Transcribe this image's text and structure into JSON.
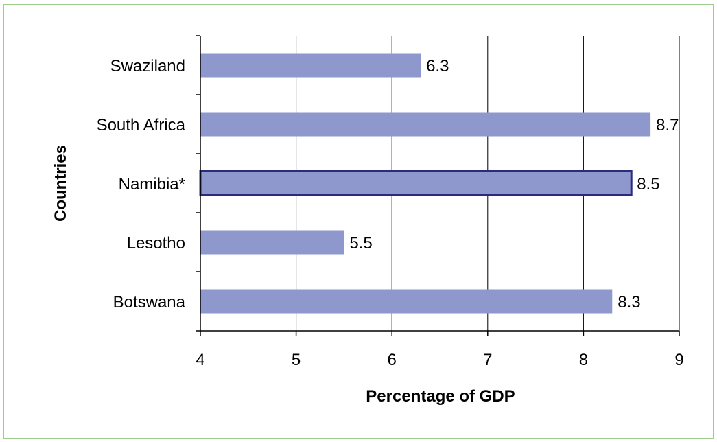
{
  "chart_data": {
    "type": "bar",
    "orientation": "horizontal",
    "categories": [
      "Swaziland",
      "South Africa",
      "Namibia*",
      "Lesotho",
      "Botswana"
    ],
    "values": [
      6.3,
      8.7,
      8.5,
      5.5,
      8.3
    ],
    "data_labels": [
      "6.3",
      "8.7",
      "8.5",
      "5.5",
      "8.3"
    ],
    "highlighted_category": "Namibia*",
    "xlabel": "Percentage of GDP",
    "ylabel": "Countries",
    "xlim": [
      4,
      9
    ],
    "xticks": [
      "4",
      "5",
      "6",
      "7",
      "8",
      "9"
    ],
    "grid": "vertical",
    "bar_color": "#8f98cc",
    "highlight_border_color": "#2a2a7e",
    "frame_color": "#9ccc8a"
  }
}
